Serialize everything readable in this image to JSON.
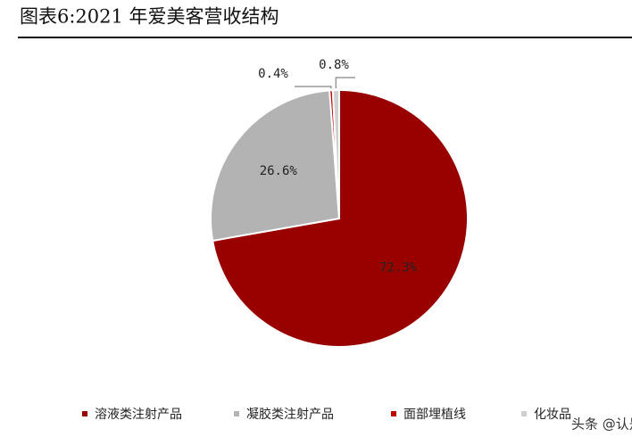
{
  "chart_data": {
    "type": "pie",
    "title": "图表6:2021 年爱美客营收结构",
    "categories": [
      "溶液类注射产品",
      "凝胶类注射产品",
      "面部埋植线",
      "化妆品"
    ],
    "values": [
      72.3,
      26.6,
      0.4,
      0.8
    ],
    "value_labels": [
      "72.3%",
      "26.6%",
      "0.4%",
      "0.8%"
    ],
    "colors": [
      "#990000",
      "#b3b3b3",
      "#c00000",
      "#d0d0d0"
    ],
    "legend": "bottom"
  },
  "watermark": "头条 @认是"
}
